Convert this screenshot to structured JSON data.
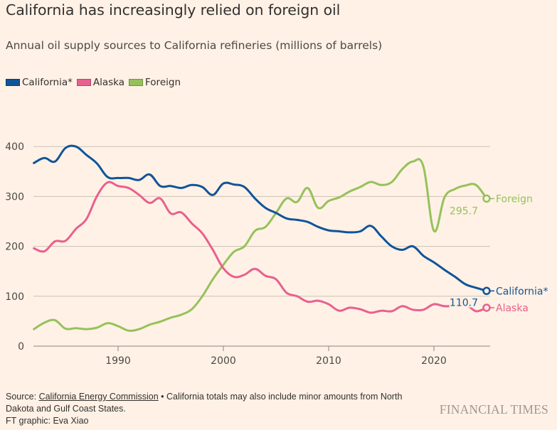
{
  "header": {
    "title": "California has increasingly relied on foreign oil",
    "subtitle": "Annual oil supply sources to California refineries (millions of barrels)"
  },
  "colors": {
    "background": "#fff1e5",
    "california": "#0f5499",
    "alaska": "#e8608e",
    "foreign": "#96c15b",
    "grid": "#ccc1b7",
    "axis": "#8c8480",
    "tick_text": "#4d4845"
  },
  "chart_data": {
    "type": "line",
    "title": "California has increasingly relied on foreign oil",
    "subtitle": "Annual oil supply sources to California refineries (millions of barrels)",
    "xlabel": "",
    "ylabel": "",
    "xlim": [
      1982,
      2025
    ],
    "ylim": [
      0,
      400
    ],
    "grid": true,
    "legend_position": "top-left",
    "x_ticks": [
      1990,
      2000,
      2010,
      2020
    ],
    "y_ticks": [
      0,
      100,
      200,
      300,
      400
    ],
    "x": [
      1982,
      1983,
      1984,
      1985,
      1986,
      1987,
      1988,
      1989,
      1990,
      1991,
      1992,
      1993,
      1994,
      1995,
      1996,
      1997,
      1998,
      1999,
      2000,
      2001,
      2002,
      2003,
      2004,
      2005,
      2006,
      2007,
      2008,
      2009,
      2010,
      2011,
      2012,
      2013,
      2014,
      2015,
      2016,
      2017,
      2018,
      2019,
      2020,
      2021,
      2022,
      2023,
      2024,
      2025
    ],
    "series": [
      {
        "name": "California*",
        "key": "california",
        "values": [
          367,
          377,
          370,
          397,
          400,
          383,
          366,
          339,
          337,
          337,
          333,
          344,
          321,
          321,
          317,
          323,
          319,
          303,
          326,
          324,
          319,
          296,
          277,
          267,
          256,
          253,
          249,
          239,
          232,
          230,
          228,
          230,
          241,
          220,
          200,
          193,
          200,
          181,
          168,
          153,
          139,
          124,
          117,
          110.7
        ],
        "end_label": "California*",
        "end_value_label": "110.7"
      },
      {
        "name": "Alaska",
        "key": "alaska",
        "values": [
          196,
          190,
          210,
          211,
          235,
          255,
          301,
          328,
          321,
          317,
          303,
          287,
          296,
          266,
          268,
          246,
          226,
          193,
          156,
          139,
          143,
          155,
          141,
          134,
          107,
          100,
          89,
          91,
          84,
          71,
          77,
          74,
          67,
          71,
          70,
          80,
          73,
          73,
          84,
          80,
          81,
          84,
          70,
          77
        ],
        "end_label": "Alaska"
      },
      {
        "name": "Foreign",
        "key": "foreign",
        "values": [
          34,
          47,
          52,
          35,
          36,
          34,
          37,
          46,
          40,
          31,
          34,
          43,
          49,
          57,
          63,
          74,
          100,
          134,
          163,
          189,
          200,
          231,
          239,
          267,
          296,
          289,
          317,
          277,
          291,
          298,
          310,
          319,
          329,
          323,
          329,
          355,
          370,
          360,
          231,
          298,
          315,
          322,
          323,
          295.7
        ],
        "end_label": "Foreign",
        "end_value_label": "295.7"
      }
    ]
  },
  "legend": {
    "items": [
      {
        "label": "California*",
        "key": "california"
      },
      {
        "label": "Alaska",
        "key": "alaska"
      },
      {
        "label": "Foreign",
        "key": "foreign"
      }
    ]
  },
  "footer": {
    "source_prefix": "Source: ",
    "source_link": "California Energy Commission",
    "note": " • California totals may also include minor amounts from North Dakota and Gulf Coast States.",
    "credit": "FT graphic: Eva Xiao",
    "logo": "FINANCIAL TIMES"
  }
}
